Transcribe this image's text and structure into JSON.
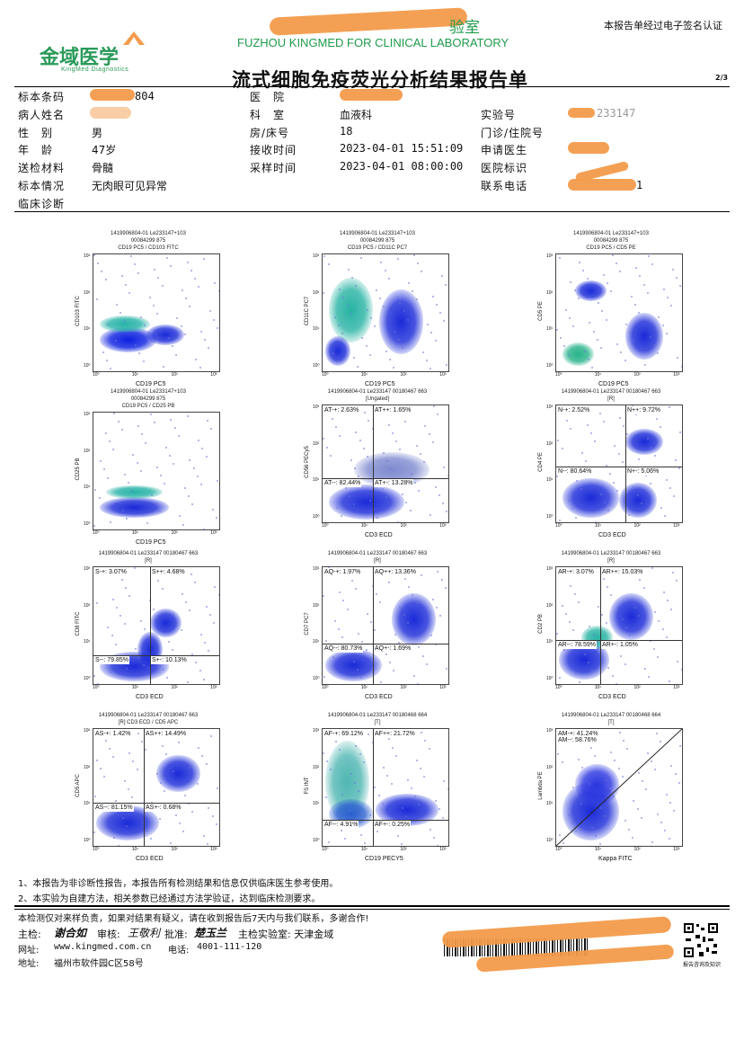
{
  "header": {
    "lab_name_cn_suffix": "验室",
    "lab_name_en": "FUZHOU KINGMED FOR CLINICAL LABORATORY",
    "esign_note": "本报告单经过电子签名认证",
    "logo_text": "金域医学",
    "logo_sub": "KingMed Diagnostics",
    "title": "流式细胞免疫荧光分析结果报告单",
    "page": "2/3"
  },
  "patient": {
    "labels": {
      "barcode": "标本条码",
      "name": "病人姓名",
      "sex": "性　别",
      "age": "年　龄",
      "material": "送检材料",
      "sample_status": "标本情况",
      "diagnosis": "临床诊断",
      "hospital": "医　院",
      "department": "科　室",
      "room_bed": "房/床号",
      "received": "接收时间",
      "collected": "采样时间",
      "lab_no": "实验号",
      "outpatient": "门诊/住院号",
      "doctor": "申请医生",
      "hospital_id": "医院标识",
      "phone": "联系电话"
    },
    "values": {
      "barcode_tail": "804",
      "sex": "男",
      "age": "47岁",
      "material": "骨髓",
      "sample_status": "无肉眼可见异常",
      "department": "血液科",
      "room_bed": "18",
      "received": "2023-04-01 15:51:09",
      "collected": "2023-04-01 08:00:00",
      "lab_no_tail": "233147",
      "phone_tail": "1"
    }
  },
  "plots": [
    {
      "h1": "1419906804-01 Le233147+103",
      "h2": "00084299 875",
      "h3": "CD19 PC5 / CD103 FITC",
      "xlabel": "CD19 PC5",
      "ylabel": "CD103 FITC",
      "quads": []
    },
    {
      "h1": "1419906804-01 Le233147+103",
      "h2": "00084299 875",
      "h3": "CD19 PC5 / CD11C PC7",
      "xlabel": "CD19 PC5",
      "ylabel": "CD11C PC7",
      "quads": []
    },
    {
      "h1": "1419906804-01 Le233147+103",
      "h2": "00084299 875",
      "h3": "CD19 PC5 / CD5 PE",
      "xlabel": "CD19 PC5",
      "ylabel": "CD5 PE",
      "quads": []
    },
    {
      "h1": "1419906804-01 Le233147+103",
      "h2": "00084299 875",
      "h3": "CD19 PC5 / CD25 PB",
      "xlabel": "CD19 PC5",
      "ylabel": "CD25 PB",
      "quads": []
    },
    {
      "h1": "1419906804-01 Le233147 00180467 663",
      "h2": "[Ungated]",
      "h3": "",
      "xlabel": "CD3 ECD",
      "ylabel": "CD56 PECy5",
      "quads": [
        "AT-+: 2.63%",
        "AT++: 1.65%",
        "AT--: 82.44%",
        "AT+-: 13.28%"
      ]
    },
    {
      "h1": "1419906804-01 Le233147 00180467 663",
      "h2": "[R]",
      "h3": "",
      "xlabel": "CD3 ECD",
      "ylabel": "CD4 PE",
      "quads": [
        "N-+: 2.52%",
        "N++: 9.72%",
        "N--: 80.64%",
        "N+-: 5.06%"
      ]
    },
    {
      "h1": "1419906804-01 Le233147 00180467 663",
      "h2": "[R]",
      "h3": "",
      "xlabel": "CD3 ECD",
      "ylabel": "CD8 FITC",
      "quads": [
        "S-+: 3.07%",
        "S++: 4.68%",
        "S--: 79.85%",
        "S+-: 10.13%"
      ]
    },
    {
      "h1": "1419906804-01 Le233147 00180467 663",
      "h2": "[R]",
      "h3": "",
      "xlabel": "CD3 ECD",
      "ylabel": "CD7 PC7",
      "quads": [
        "AQ-+: 1.97%",
        "AQ++: 13.36%",
        "AQ--: 80.73%",
        "AQ+-: 1.69%"
      ]
    },
    {
      "h1": "1419906804-01 Le233147 00180467 663",
      "h2": "[R]",
      "h3": "",
      "xlabel": "CD3 ECD",
      "ylabel": "CD2 PB",
      "quads": [
        "AR-+: 3.07%",
        "AR++: 15.03%",
        "AR--: 78.59%",
        "AR+-: 1.05%"
      ]
    },
    {
      "h1": "1419906804-01 Le233147 00180467 663",
      "h2": "[R] CD3 ECD / CD5 APC",
      "h3": "",
      "xlabel": "CD3 ECD",
      "ylabel": "CD5 APC",
      "quads": [
        "AS-+: 1.42%",
        "AS++: 14.49%",
        "AS--: 81.15%",
        "AS+-: 0.68%"
      ]
    },
    {
      "h1": "1419906804-01 Le233147 00180468 664",
      "h2": "[T]",
      "h3": "",
      "xlabel": "CD19 PECY5",
      "ylabel": "FS INT",
      "quads": [
        "AF-+: 69.12%",
        "AF++: 21.72%",
        "AF--: 4.91%",
        "AF+-: 0.25%"
      ]
    },
    {
      "h1": "1419906804-01 Le233147 00180468 664",
      "h2": "[T]",
      "h3": "",
      "xlabel": "Kappa FITC",
      "ylabel": "Lambda PE",
      "quads": [
        "AM-+: 41.24%",
        "",
        "AM--: 58.76%",
        ""
      ]
    }
  ],
  "notes": [
    "1、本报告为非诊断性报告，本报告所有检测结果和信息仅供临床医生参考使用。",
    "2、本实验为自建方法，相关参数已经通过方法学验证，达到临床检测要求。"
  ],
  "footer": {
    "disclaimer": "本检测仅对来样负责，如果对结果有疑义，请在收到报告后7天内与我们联系，多谢合作!",
    "inspector_label": "主检:",
    "inspector_sig": "谢合如",
    "reviewer_label": "审核:",
    "reviewer_sig": "王敬利",
    "approver_label": "批准:",
    "approver_sig": "楚玉兰",
    "main_lab": "主检实验室: 天津金域",
    "website_label": "网址:",
    "website": "www.kingmed.com.cn",
    "phone_label": "电话:",
    "phone": "4001-111-120",
    "address_label": "地址:",
    "address": "福州市软件园C区58号",
    "qr_caption": "报告咨询及知识"
  },
  "colors": {
    "accent_green": "#1e9a4a",
    "redaction": "#f39b4b"
  }
}
